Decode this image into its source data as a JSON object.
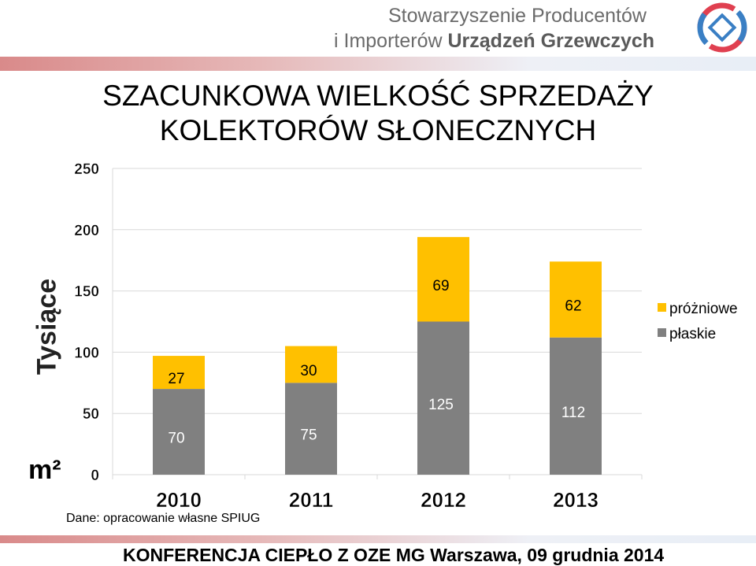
{
  "header": {
    "org_line1": "Stowarzyszenie Producentów",
    "org_line2_a": "i Importerów ",
    "org_line2_b": "Urządzeń Grzewczych"
  },
  "title": {
    "line1": "SZACUNKOWA WIELKOŚĆ SPRZEDAŻY",
    "line2": "KOLEKTORÓW SŁONECZNYCH"
  },
  "axis_label": "Tysiące",
  "unit_label": "m²",
  "source": "Dane: opracowanie własne SPIUG",
  "footer": "KONFERENCJA CIEPŁO Z OZE    MG  Warszawa,  09 grudnia 2014",
  "colors": {
    "bottom_series": "#808080",
    "top_series": "#ffc000",
    "grid": "#d9d9d9"
  },
  "chart_data": {
    "type": "bar",
    "stacked": true,
    "categories": [
      "2010",
      "2011",
      "2012",
      "2013"
    ],
    "series": [
      {
        "name": "płaskie",
        "values": [
          70,
          75,
          125,
          112
        ],
        "color": "#808080"
      },
      {
        "name": "próżniowe",
        "values": [
          27,
          30,
          69,
          62
        ],
        "color": "#ffc000"
      }
    ],
    "yticks": [
      0,
      50,
      100,
      150,
      200,
      250
    ],
    "ylim": [
      0,
      250
    ],
    "ylabel": "Tysiące",
    "grid": true,
    "legend": "right"
  }
}
